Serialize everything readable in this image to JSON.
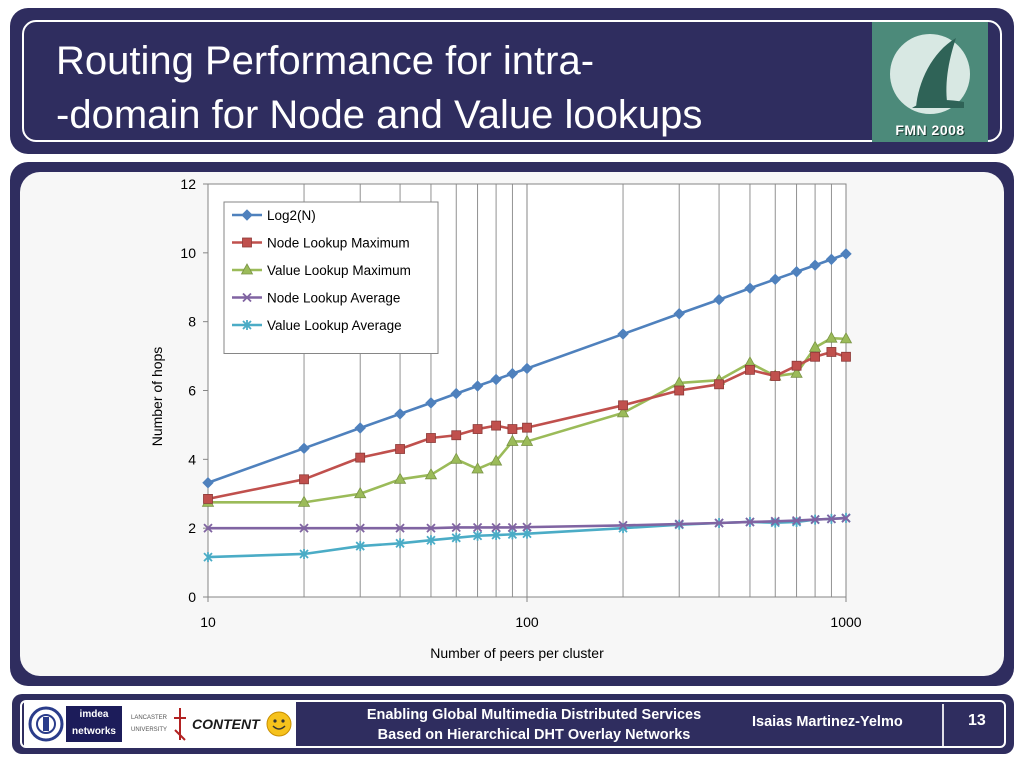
{
  "slide": {
    "title_line1": "Routing Performance for intra-",
    "title_line2": "-domain for Node and Value lookups",
    "logo_text": "FMN 2008"
  },
  "footer": {
    "line1": "Enabling Global Multimedia Distributed Services",
    "line2": "Based on Hierarchical DHT Overlay Networks",
    "author": "Isaias Martinez-Yelmo",
    "page": "13",
    "logo_labels": [
      "imdea networks",
      "LANCASTER UNIVERSITY",
      "CONTENT"
    ]
  },
  "chart_data": {
    "type": "line",
    "xscale": "log",
    "xlim": [
      10,
      1000
    ],
    "ylim": [
      0,
      12
    ],
    "xlabel": "Number of peers per cluster",
    "ylabel": "Number of hops",
    "x_ticks": [
      10,
      100,
      1000
    ],
    "y_ticks": [
      0,
      2,
      4,
      6,
      8,
      10,
      12
    ],
    "grid": "vertical log gridlines",
    "legend_position": "top-left",
    "x": [
      10,
      20,
      30,
      40,
      50,
      60,
      70,
      80,
      90,
      100,
      200,
      300,
      400,
      500,
      600,
      700,
      800,
      900,
      1000
    ],
    "series": [
      {
        "name": "Log2(N)",
        "color": "#4f81bd",
        "marker": "diamond",
        "values": [
          3.32,
          4.32,
          4.91,
          5.32,
          5.64,
          5.91,
          6.13,
          6.32,
          6.49,
          6.64,
          7.64,
          8.23,
          8.64,
          8.97,
          9.23,
          9.45,
          9.64,
          9.81,
          9.97
        ]
      },
      {
        "name": "Node Lookup Maximum",
        "color": "#c0504d",
        "marker": "square",
        "values": [
          2.85,
          3.42,
          4.05,
          4.3,
          4.62,
          4.7,
          4.88,
          4.98,
          4.88,
          4.92,
          5.57,
          6.0,
          6.18,
          6.6,
          6.42,
          6.72,
          6.98,
          7.12,
          6.98
        ]
      },
      {
        "name": "Value Lookup Maximum",
        "color": "#9bbb59",
        "marker": "triangle",
        "values": [
          2.75,
          2.75,
          3.0,
          3.42,
          3.55,
          4.0,
          3.72,
          3.95,
          4.52,
          4.52,
          5.35,
          6.22,
          6.3,
          6.8,
          6.42,
          6.5,
          7.25,
          7.52,
          7.5
        ]
      },
      {
        "name": "Node Lookup Average",
        "color": "#8064a2",
        "marker": "x",
        "values": [
          2.0,
          2.0,
          2.0,
          2.0,
          2.0,
          2.02,
          2.02,
          2.02,
          2.02,
          2.03,
          2.08,
          2.12,
          2.15,
          2.18,
          2.2,
          2.22,
          2.25,
          2.27,
          2.29
        ]
      },
      {
        "name": "Value Lookup Average",
        "color": "#4bacc6",
        "marker": "star",
        "values": [
          1.16,
          1.25,
          1.48,
          1.56,
          1.65,
          1.72,
          1.78,
          1.8,
          1.82,
          1.84,
          2.0,
          2.1,
          2.15,
          2.18,
          2.16,
          2.18,
          2.25,
          2.27,
          2.3
        ]
      }
    ]
  }
}
